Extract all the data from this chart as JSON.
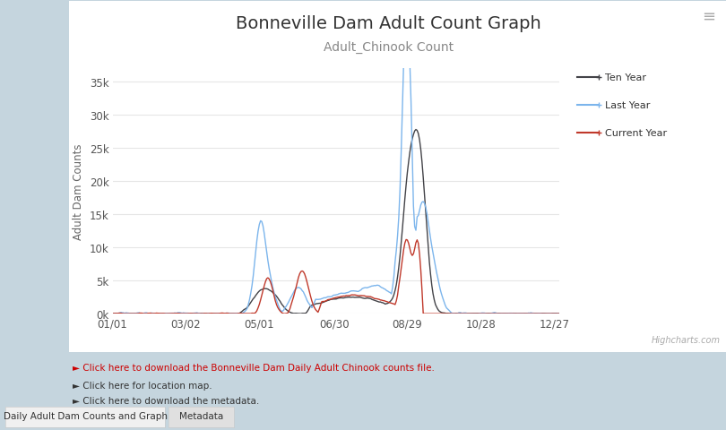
{
  "title": "Bonneville Dam Adult Count Graph",
  "subtitle": "Adult_Chinook Count",
  "ylabel": "Adult Dam Counts",
  "yticks": [
    0,
    5000,
    10000,
    15000,
    20000,
    25000,
    30000,
    35000
  ],
  "ytick_labels": [
    "0k",
    "5k",
    "10k",
    "15k",
    "20k",
    "25k",
    "30k",
    "35k"
  ],
  "xtick_labels": [
    "01/01",
    "03/02",
    "05/01",
    "06/30",
    "08/29",
    "10/28",
    "12/27"
  ],
  "ylim": [
    0,
    37000
  ],
  "xlim": [
    0,
    365
  ],
  "ten_year_color": "#434348",
  "last_year_color": "#7cb5ec",
  "current_year_color": "#c0392b",
  "background_color": "#ffffff",
  "outer_background": "#c5d5de",
  "grid_color": "#e6e6e6",
  "title_fontsize": 14,
  "subtitle_fontsize": 10,
  "watermark": "Highcharts.com",
  "bottom_text1": "► Click here to download the Bonneville Dam Daily Adult Chinook counts file.",
  "bottom_text2": "► Click here for location map.",
  "bottom_text3": "► Click here to download the metadata.",
  "tab1": "Daily Adult Dam Counts and Graph",
  "tab2": "Metadata"
}
